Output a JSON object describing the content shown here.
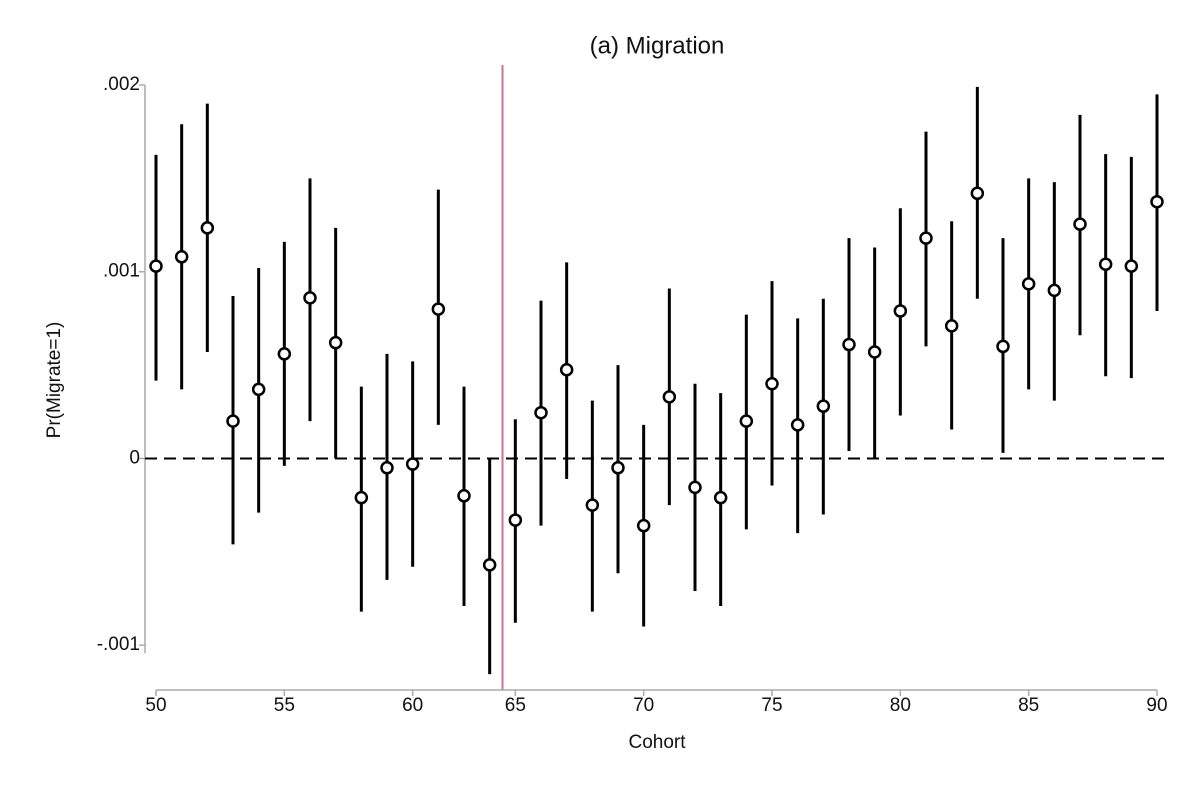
{
  "chart_data": {
    "type": "errorbar",
    "title": "(a) Migration",
    "xlabel": "Cohort",
    "ylabel": "Pr(Migrate=1)",
    "x": [
      50,
      51,
      52,
      53,
      54,
      55,
      56,
      57,
      58,
      59,
      60,
      61,
      62,
      63,
      65,
      66,
      67,
      68,
      69,
      70,
      71,
      72,
      73,
      74,
      75,
      76,
      77,
      78,
      79,
      80,
      81,
      82,
      83,
      84,
      85,
      86,
      87,
      88,
      89,
      90
    ],
    "series": [
      {
        "color": "#000000",
        "values": [
          0.00103,
          0.00108,
          0.001235,
          0.0002,
          0.00037,
          0.00056,
          0.00086,
          0.00062,
          -0.00021,
          -5e-05,
          -3e-05,
          0.0008,
          -0.0002,
          -0.00057,
          -0.00033,
          0.000245,
          0.000475,
          -0.00025,
          -5e-05,
          -0.00036,
          0.00033,
          -0.000155,
          -0.00021,
          0.0002,
          0.0004,
          0.00018,
          0.00028,
          0.00061,
          0.00057,
          0.00079,
          0.00118,
          0.00071,
          0.00142,
          0.0006,
          0.000935,
          0.0009,
          0.001255,
          0.00104,
          0.00103,
          0.001375
        ],
        "lower": [
          0.000417,
          0.00037,
          0.00057,
          -0.00046,
          -0.00029,
          -4e-05,
          0.0002,
          0,
          -0.00082,
          -0.00065,
          -0.00058,
          0.00018,
          -0.00079,
          -0.001155,
          -0.00088,
          -0.00036,
          -0.00011,
          -0.00082,
          -0.000615,
          -0.0009,
          -0.00025,
          -0.00071,
          -0.00079,
          -0.00038,
          -0.000145,
          -0.0004,
          -0.0003,
          4e-05,
          0,
          0.00023,
          0.0006,
          0.000155,
          0.000855,
          3e-05,
          0.00037,
          0.00031,
          0.00066,
          0.00044,
          0.00043,
          0.00079
        ],
        "upper": [
          0.001626,
          0.00179,
          0.0019,
          0.00087,
          0.00102,
          0.00116,
          0.0015,
          0.001235,
          0.000385,
          0.00056,
          0.00052,
          0.00144,
          0.000385,
          0,
          0.00021,
          0.000845,
          0.00105,
          0.00031,
          0.0005,
          0.00018,
          0.00091,
          0.0004,
          0.00035,
          0.00077,
          0.00095,
          0.00075,
          0.000855,
          0.00118,
          0.00113,
          0.00134,
          0.00175,
          0.00127,
          0.00199,
          0.00118,
          0.0015,
          0.00148,
          0.00184,
          0.00163,
          0.001615,
          0.00195
        ]
      }
    ],
    "xlim": [
      50,
      90
    ],
    "xticks": [
      50,
      55,
      60,
      65,
      70,
      75,
      80,
      85,
      90
    ],
    "ylim": [
      -0.00124,
      0.002
    ],
    "yticks": [
      {
        "value": -0.001,
        "label": "-.001"
      },
      0,
      {
        "value": 0.001,
        "label": ".001"
      },
      {
        "value": 0.002,
        "label": ".002"
      }
    ],
    "hline": 0,
    "vline": 64,
    "vline_color": "#c9739f",
    "axis_color": "#aaaaaa"
  }
}
